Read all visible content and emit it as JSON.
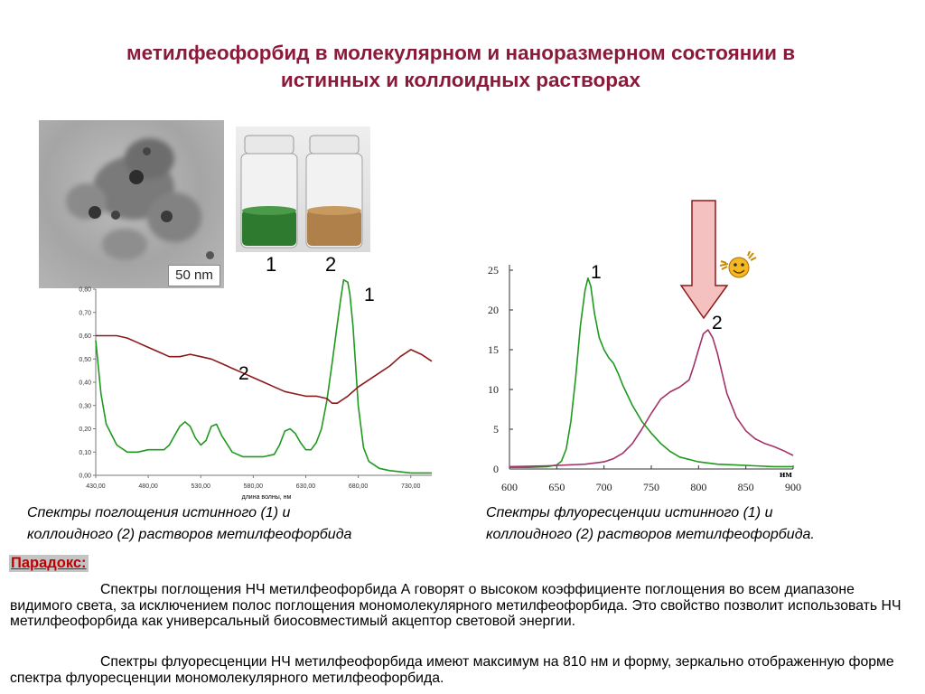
{
  "title": {
    "line1": "метилфеофорбид  в молекулярном и наноразмерном состоянии в",
    "line2": "истинных и коллоидных растворах"
  },
  "tem_image": {
    "scale_label": "50 nm"
  },
  "vials": {
    "label_1": "1",
    "label_2": "2"
  },
  "colors": {
    "title": "#8b1a3a",
    "green": "#1e9a1e",
    "dark_red": "#8b1a1a",
    "magenta": "#a3326a",
    "arrow_fill": "#f4c0c0",
    "paradox": "#c00000"
  },
  "absorption_chart": {
    "xlabel_text": "длина волны, нм",
    "curve_label_1": "1",
    "curve_label_2": "2",
    "caption_line1": "Спектры поглощения истинного (1) и",
    "caption_line2": "коллоидного (2) растворов метилфеофорбида"
  },
  "fluorescence_chart": {
    "unit_label": "нм",
    "curve_label_1": "1",
    "curve_label_2": "2",
    "caption_line1": "Спектры флуоресценции истинного (1) и",
    "caption_line2": "коллоидного (2) растворов метилфеофорбида."
  },
  "paradox": {
    "heading": "Парадокс:",
    "paragraph1": "Спектры поглощения НЧ метилфеофорбида А говорят о высоком коэффициенте поглощения во всем диапазоне видимого света, за исключением полос поглощения мономолекулярного метилфеофорбида. Это свойство позволит использовать НЧ метилфеофорбида как универсальный биосовместимый акцептор световой энергии.",
    "paragraph2": "Спектры флуоресценции НЧ метилфеофорбида имеют максимум на 810 нм и форму, зеркально отображенную форме спектра флуоресценции мономолекулярного метилфеофорбида."
  },
  "chart_data": [
    {
      "type": "line",
      "xlabel": "длина волны, нм",
      "ylabel": "",
      "xlim": [
        430,
        750
      ],
      "ylim": [
        0,
        0.8
      ],
      "x_ticks": [
        "430,00",
        "480,00",
        "530,00",
        "580,00",
        "630,00",
        "680,00",
        "730,00"
      ],
      "y_ticks": [
        "0,00",
        "0,10",
        "0,20",
        "0,30",
        "0,40",
        "0,50",
        "0,60",
        "0,70",
        "0,80"
      ],
      "series": [
        {
          "name": "1",
          "x": [
            430,
            435,
            440,
            450,
            460,
            470,
            480,
            490,
            495,
            500,
            505,
            510,
            515,
            520,
            525,
            530,
            535,
            540,
            545,
            550,
            560,
            570,
            580,
            590,
            600,
            605,
            610,
            615,
            620,
            625,
            630,
            635,
            640,
            645,
            650,
            655,
            660,
            663,
            666,
            670,
            672,
            675,
            680,
            685,
            690,
            700,
            710,
            720,
            730,
            740,
            750
          ],
          "values": [
            0.58,
            0.35,
            0.22,
            0.13,
            0.1,
            0.1,
            0.11,
            0.11,
            0.11,
            0.13,
            0.17,
            0.21,
            0.23,
            0.21,
            0.16,
            0.13,
            0.15,
            0.21,
            0.22,
            0.17,
            0.1,
            0.08,
            0.08,
            0.08,
            0.09,
            0.13,
            0.19,
            0.2,
            0.18,
            0.14,
            0.11,
            0.11,
            0.14,
            0.2,
            0.32,
            0.48,
            0.65,
            0.75,
            0.84,
            0.83,
            0.78,
            0.64,
            0.3,
            0.12,
            0.06,
            0.03,
            0.02,
            0.015,
            0.01,
            0.01,
            0.01
          ]
        },
        {
          "name": "2",
          "x": [
            430,
            440,
            450,
            460,
            470,
            480,
            490,
            500,
            510,
            520,
            530,
            540,
            550,
            560,
            570,
            580,
            590,
            600,
            610,
            620,
            630,
            640,
            650,
            655,
            660,
            670,
            680,
            690,
            700,
            710,
            720,
            730,
            740,
            750
          ],
          "values": [
            0.6,
            0.6,
            0.6,
            0.59,
            0.57,
            0.55,
            0.53,
            0.51,
            0.51,
            0.52,
            0.51,
            0.5,
            0.48,
            0.46,
            0.44,
            0.42,
            0.4,
            0.38,
            0.36,
            0.35,
            0.34,
            0.34,
            0.33,
            0.31,
            0.31,
            0.34,
            0.38,
            0.41,
            0.44,
            0.47,
            0.51,
            0.54,
            0.52,
            0.49
          ]
        }
      ]
    },
    {
      "type": "line",
      "xlabel": "нм",
      "ylabel": "",
      "xlim": [
        600,
        900
      ],
      "ylim": [
        0,
        25
      ],
      "x_ticks": [
        "600",
        "650",
        "700",
        "750",
        "800",
        "850",
        "900"
      ],
      "y_ticks": [
        "0",
        "5",
        "10",
        "15",
        "20",
        "25"
      ],
      "series": [
        {
          "name": "1",
          "x": [
            600,
            620,
            640,
            650,
            655,
            660,
            665,
            670,
            675,
            680,
            683,
            686,
            690,
            695,
            700,
            705,
            710,
            715,
            720,
            730,
            740,
            750,
            760,
            770,
            780,
            800,
            820,
            840,
            860,
            880,
            900
          ],
          "values": [
            0.2,
            0.2,
            0.3,
            0.5,
            1.0,
            2.5,
            6.0,
            11.5,
            18.0,
            22.5,
            24.0,
            23.0,
            19.5,
            16.5,
            15.0,
            14.0,
            13.3,
            12.0,
            10.5,
            8.0,
            6.0,
            4.5,
            3.2,
            2.2,
            1.5,
            0.9,
            0.6,
            0.5,
            0.4,
            0.3,
            0.3
          ]
        },
        {
          "name": "2",
          "x": [
            600,
            640,
            680,
            700,
            710,
            720,
            730,
            740,
            750,
            760,
            770,
            780,
            790,
            795,
            800,
            805,
            810,
            815,
            820,
            825,
            830,
            840,
            850,
            860,
            870,
            880,
            890,
            900
          ],
          "values": [
            0.3,
            0.4,
            0.6,
            0.9,
            1.3,
            2.0,
            3.2,
            5.0,
            7.0,
            8.8,
            9.7,
            10.3,
            11.2,
            13.0,
            15.0,
            17.0,
            17.5,
            16.5,
            14.5,
            12.0,
            9.5,
            6.5,
            4.8,
            3.8,
            3.2,
            2.8,
            2.3,
            1.7
          ]
        }
      ]
    }
  ]
}
